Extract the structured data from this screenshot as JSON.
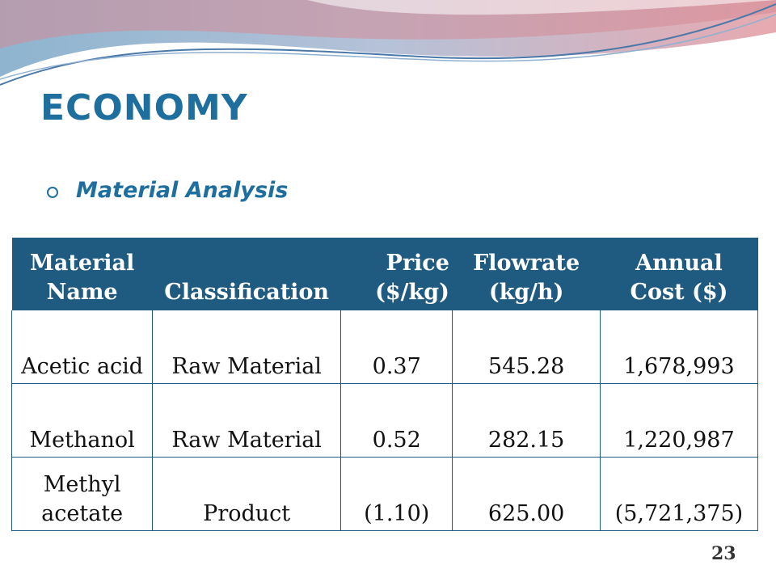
{
  "slide": {
    "title": "ECONOMY",
    "subtitle": "Material Analysis",
    "page_number": "23"
  },
  "table": {
    "headers": [
      [
        "Material",
        "Name"
      ],
      [
        "Classification"
      ],
      [
        "Price",
        "($/kg)"
      ],
      [
        "Flowrate",
        "(kg/h)"
      ],
      [
        "Annual",
        "Cost ($)"
      ]
    ],
    "rows": [
      {
        "name": [
          "Acetic acid"
        ],
        "classification": "Raw Material",
        "price": "0.37",
        "flowrate": "545.28",
        "annual_cost": "1,678,993"
      },
      {
        "name": [
          "Methanol"
        ],
        "classification": "Raw Material",
        "price": "0.52",
        "flowrate": "282.15",
        "annual_cost": "1,220,987"
      },
      {
        "name": [
          "Methyl",
          "acetate"
        ],
        "classification": "Product",
        "price": "(1.10)",
        "flowrate": "625.00",
        "annual_cost": "(5,721,375)"
      }
    ]
  },
  "colors": {
    "title": "#1f6f9e",
    "header_bg": "#1f5a80",
    "header_text": "#ffffff"
  }
}
